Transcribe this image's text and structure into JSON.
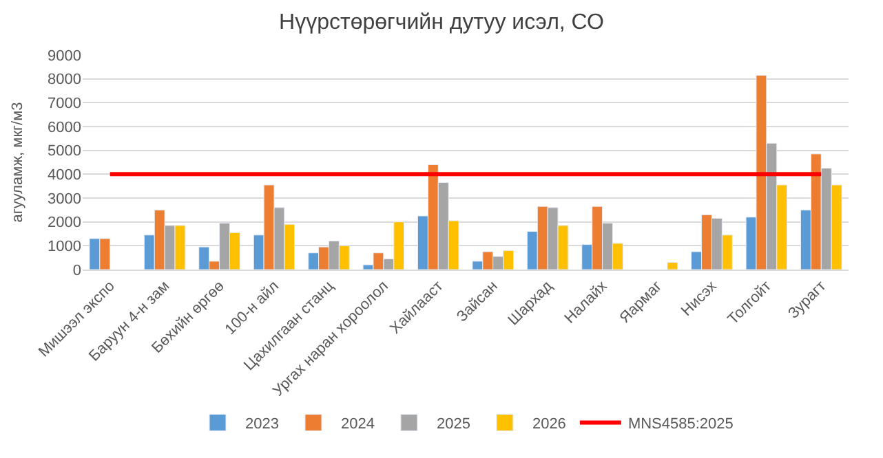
{
  "chart_data": {
    "type": "bar",
    "title": "Нүүрстөрөгчийн дутуу исэл, СО",
    "ylabel": "агууламж, мкг/м3",
    "categories": [
      "Мишээл экспо",
      "Баруун 4-н зам",
      "Бөхийн өргөө",
      "100-н айл",
      "Цахилгаан станц",
      "Ургах наран хороолол",
      "Хайлааст",
      "Зайсан",
      "Шархад",
      "Налайх",
      "Яармаг",
      "Нисэх",
      "Толгойт",
      "Зурагт"
    ],
    "series": [
      {
        "name": "2023",
        "color": "#5b9bd5",
        "values": [
          1300,
          1450,
          950,
          1450,
          700,
          200,
          2250,
          350,
          1600,
          1050,
          null,
          750,
          2200,
          2500
        ]
      },
      {
        "name": "2024",
        "color": "#ed7d31",
        "values": [
          1300,
          2500,
          350,
          3550,
          950,
          700,
          4400,
          750,
          2650,
          2650,
          null,
          2300,
          8150,
          4850
        ]
      },
      {
        "name": "2025",
        "color": "#a5a5a5",
        "values": [
          null,
          1850,
          1950,
          2600,
          1200,
          450,
          3650,
          550,
          2600,
          1950,
          null,
          2150,
          5300,
          4250
        ]
      },
      {
        "name": "2026",
        "color": "#ffc000",
        "values": [
          null,
          1850,
          1550,
          1900,
          1000,
          2000,
          2050,
          800,
          1850,
          1100,
          300,
          1450,
          3550,
          3550
        ]
      },
      {
        "name": "MNS4585:2025",
        "type": "line",
        "color": "#ff0000",
        "values": [
          4000,
          4000,
          4000,
          4000,
          4000,
          4000,
          4000,
          4000,
          4000,
          4000,
          4000,
          4000,
          4000,
          4000
        ]
      }
    ],
    "ylim": [
      0,
      9000
    ],
    "yticks": [
      0,
      1000,
      2000,
      3000,
      4000,
      5000,
      6000,
      7000,
      8000,
      9000
    ],
    "grid": "y",
    "legend": "bottom"
  }
}
